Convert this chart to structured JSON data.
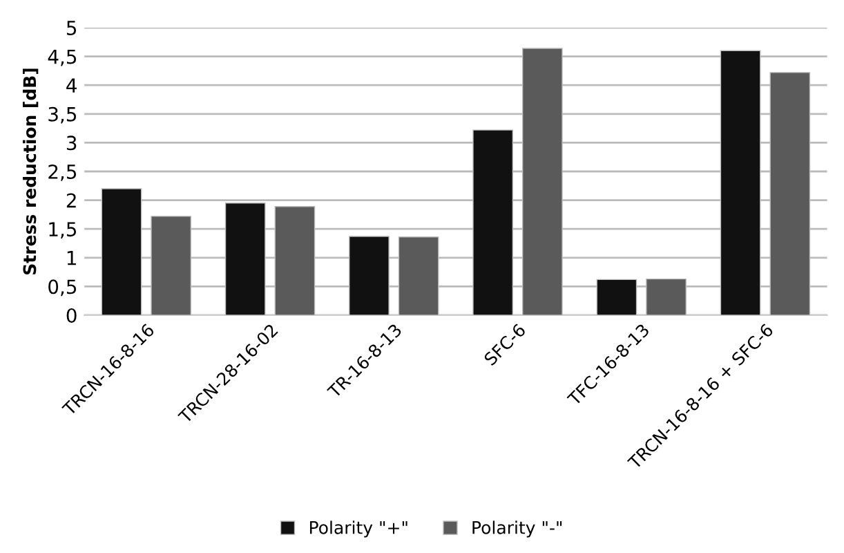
{
  "chart_data": {
    "type": "bar",
    "ylabel": "Stress reduction [dB]",
    "categories": [
      "TRCN-16-8-16",
      "TRCN-28-16-02",
      "TR-16-8-13",
      "SFC-6",
      "TFC-16-8-13",
      "TRCN-16-8-16 + SFC-6"
    ],
    "series": [
      {
        "name": "Polarity \"+\"",
        "color": "#111111",
        "values": [
          2.2,
          1.95,
          1.37,
          3.22,
          0.62,
          4.6
        ]
      },
      {
        "name": "Polarity \"-\"",
        "color": "#5a5a5a",
        "values": [
          1.72,
          1.89,
          1.36,
          4.64,
          0.63,
          4.22
        ]
      }
    ],
    "ylim": [
      0,
      5
    ],
    "yticks": [
      0,
      {
        "value": 0.5,
        "label": "0,5"
      },
      1,
      {
        "value": 1.5,
        "label": "1,5"
      },
      2,
      {
        "value": 2.5,
        "label": "2,5"
      },
      3,
      {
        "value": 3.5,
        "label": "3,5"
      },
      4,
      {
        "value": 4.5,
        "label": "4,5"
      },
      5
    ],
    "grid": "y",
    "legend": "bottom"
  }
}
